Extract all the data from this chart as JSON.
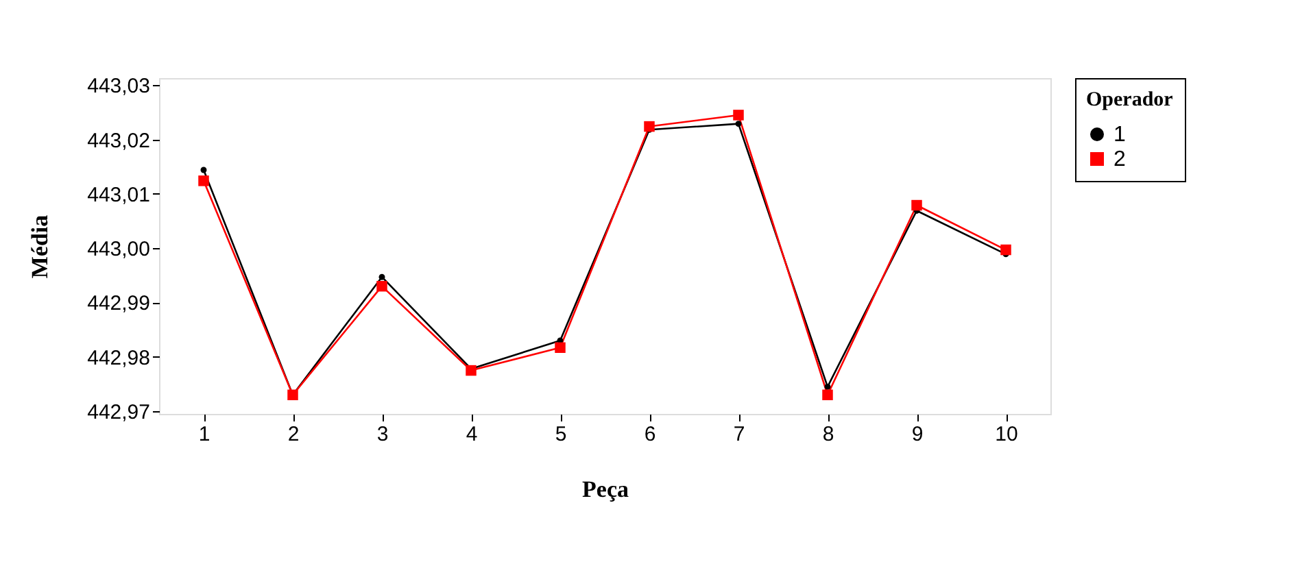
{
  "chart_data": {
    "type": "line",
    "xlabel": "Peça",
    "ylabel": "Média",
    "legend_title": "Operador",
    "categories": [
      "1",
      "2",
      "3",
      "4",
      "5",
      "6",
      "7",
      "8",
      "9",
      "10"
    ],
    "series": [
      {
        "name": "1",
        "color": "#000000",
        "marker": "circle",
        "values": [
          443.0144,
          442.973,
          442.9947,
          442.9778,
          442.983,
          443.0218,
          443.0229,
          442.9745,
          443.0069,
          442.9989
        ]
      },
      {
        "name": "2",
        "color": "#ff0000",
        "marker": "square",
        "values": [
          443.0124,
          442.973,
          442.993,
          442.9775,
          442.9817,
          443.0224,
          443.0245,
          442.973,
          443.0079,
          442.9997
        ]
      }
    ],
    "ylim": [
      442.9695,
      443.0313
    ],
    "yticks": [
      {
        "value": 442.97,
        "label": "442,97"
      },
      {
        "value": 442.98,
        "label": "442,98"
      },
      {
        "value": 442.99,
        "label": "442,99"
      },
      {
        "value": 443.0,
        "label": "443,00"
      },
      {
        "value": 443.01,
        "label": "443,01"
      },
      {
        "value": 443.02,
        "label": "443,02"
      },
      {
        "value": 443.03,
        "label": "443,03"
      }
    ],
    "grid": false,
    "legend": "top right",
    "line_style": "solid"
  }
}
